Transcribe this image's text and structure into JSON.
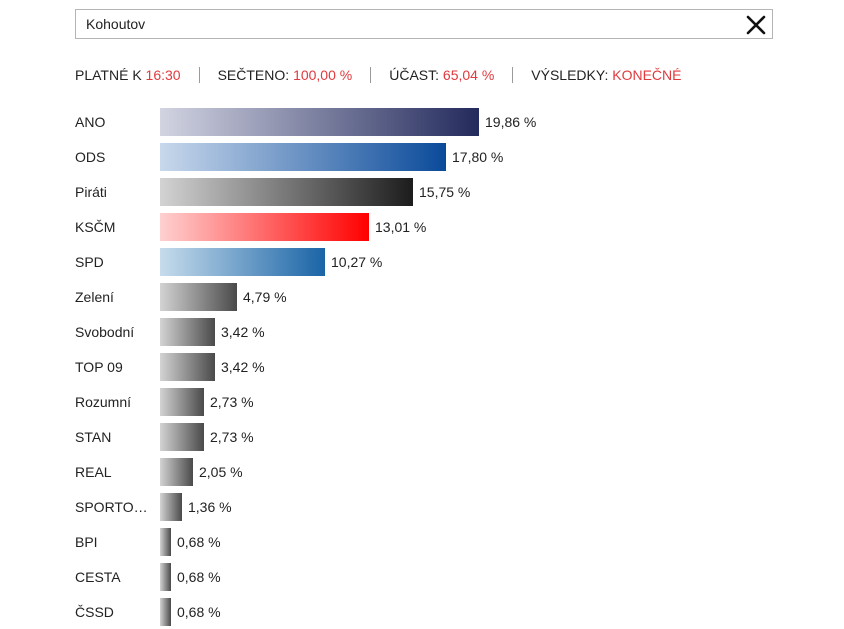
{
  "search": {
    "value": "Kohoutov",
    "placeholder": ""
  },
  "icons": {
    "close": "close-icon"
  },
  "status": {
    "valid_label": "PLATNÉ K",
    "valid_value": "16:30",
    "counted_label": "SEČTENO:",
    "counted_value": "100,00 %",
    "turnout_label": "ÚČAST:",
    "turnout_value": "65,04 %",
    "results_label": "VÝSLEDKY:",
    "results_value": "KONEČNÉ"
  },
  "colors": {
    "accent_red": "#e03a3e"
  },
  "chart_data": {
    "type": "bar",
    "orientation": "horizontal",
    "categories": [
      "ANO",
      "ODS",
      "Piráti",
      "KSČM",
      "SPD",
      "Zelení",
      "Svobodní",
      "TOP 09",
      "Rozumní",
      "STAN",
      "REAL",
      "SPORTO…",
      "BPI",
      "CESTA",
      "ČSSD"
    ],
    "values": [
      19.86,
      17.8,
      15.75,
      13.01,
      10.27,
      4.79,
      3.42,
      3.42,
      2.73,
      2.73,
      2.05,
      1.36,
      0.68,
      0.68,
      0.68
    ],
    "value_labels": [
      "19,86 %",
      "17,80 %",
      "15,75 %",
      "13,01 %",
      "10,27 %",
      "4,79 %",
      "3,42 %",
      "3,42 %",
      "2,73 %",
      "2,73 %",
      "2,05 %",
      "1,36 %",
      "0,68 %",
      "0,68 %",
      "0,68 %"
    ],
    "bar_gradients": [
      [
        "#d2d4e2",
        "#232a5c"
      ],
      [
        "#c8d8ec",
        "#0a4a9a"
      ],
      [
        "#d3d3d3",
        "#1c1c1c"
      ],
      [
        "#ffd0d0",
        "#ff0000"
      ],
      [
        "#c6dcec",
        "#1a64a6"
      ],
      [
        "#d3d3d3",
        "#4a4a4a"
      ],
      [
        "#d3d3d3",
        "#4a4a4a"
      ],
      [
        "#d3d3d3",
        "#4a4a4a"
      ],
      [
        "#d3d3d3",
        "#4a4a4a"
      ],
      [
        "#d3d3d3",
        "#4a4a4a"
      ],
      [
        "#d3d3d3",
        "#4a4a4a"
      ],
      [
        "#d3d3d3",
        "#4a4a4a"
      ],
      [
        "#d3d3d3",
        "#4a4a4a"
      ],
      [
        "#d3d3d3",
        "#4a4a4a"
      ],
      [
        "#d3d3d3",
        "#4a4a4a"
      ]
    ],
    "xlim": [
      0,
      19.86
    ]
  }
}
